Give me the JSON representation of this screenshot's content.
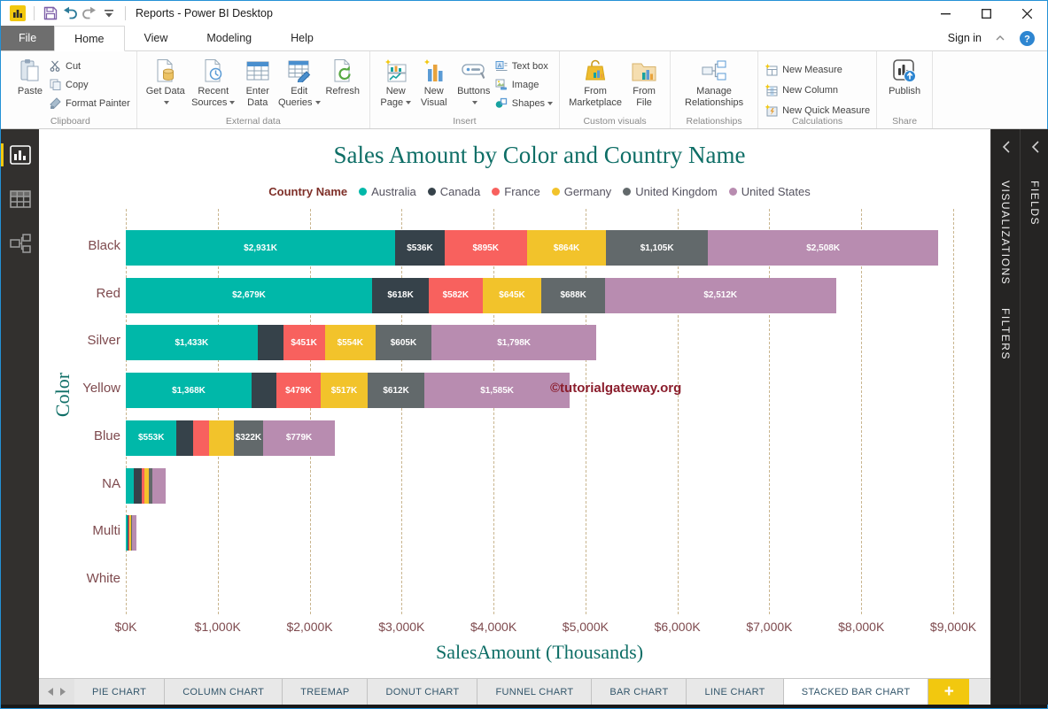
{
  "window": {
    "title": "Reports - Power BI Desktop"
  },
  "menu": {
    "tabs": [
      {
        "label": "File"
      },
      {
        "label": "Home"
      },
      {
        "label": "View"
      },
      {
        "label": "Modeling"
      },
      {
        "label": "Help"
      }
    ],
    "active_tab": "Home",
    "sign_in": "Sign in"
  },
  "ribbon": {
    "clipboard": {
      "group_label": "Clipboard",
      "paste": "Paste",
      "cut": "Cut",
      "copy": "Copy",
      "format_painter": "Format Painter"
    },
    "external": {
      "group_label": "External data",
      "get_data": "Get Data",
      "recent_sources": "Recent Sources",
      "enter_data": "Enter Data",
      "edit_queries": "Edit Queries",
      "refresh": "Refresh"
    },
    "insert": {
      "group_label": "Insert",
      "new_page": "New Page",
      "new_visual": "New Visual",
      "buttons": "Buttons",
      "text_box": "Text box",
      "image": "Image",
      "shapes": "Shapes"
    },
    "custom": {
      "group_label": "Custom visuals",
      "from_marketplace": "From Marketplace",
      "from_file": "From File"
    },
    "relationships": {
      "group_label": "Relationships",
      "manage": "Manage Relationships"
    },
    "calculations": {
      "group_label": "Calculations",
      "new_measure": "New Measure",
      "new_column": "New Column",
      "new_quick": "New Quick Measure"
    },
    "share": {
      "group_label": "Share",
      "publish": "Publish"
    }
  },
  "panels": {
    "visualizations": "VISUALIZATIONS",
    "filters": "FILTERS",
    "fields": "FIELDS"
  },
  "watermark": "©tutorialgateway.org",
  "page_tabs": {
    "tabs": [
      "PIE CHART",
      "COLUMN CHART",
      "TREEMAP",
      "DONUT CHART",
      "FUNNEL CHART",
      "BAR CHART",
      "LINE CHART",
      "STACKED BAR CHART"
    ],
    "active_index": 7,
    "add_label": "+"
  },
  "theme": {
    "title_color": "#0E6E66",
    "axis_label_color": "#7E4A4E",
    "grid_color": "#C9B58E",
    "watermark_color": "#8B1E2D",
    "accent_yellow": "#F2C80F"
  },
  "chart_data": {
    "type": "bar",
    "subtype": "stacked_horizontal",
    "title": "Sales Amount by Color and Country Name",
    "legend_title": "Country Name",
    "legend_position": "top",
    "xlabel": "SalesAmount (Thousands)",
    "ylabel": "Color",
    "x_ticks": [
      "$0K",
      "$1,000K",
      "$2,000K",
      "$3,000K",
      "$4,000K",
      "$5,000K",
      "$6,000K",
      "$7,000K",
      "$8,000K",
      "$9,000K"
    ],
    "xlim_thousands": [
      0,
      9000
    ],
    "grid": "dashed_vertical",
    "categories": [
      "Black",
      "Red",
      "Silver",
      "Yellow",
      "Blue",
      "NA",
      "Multi",
      "White"
    ],
    "series": [
      {
        "name": "Australia",
        "color": "#00B8A9"
      },
      {
        "name": "Canada",
        "color": "#36424A"
      },
      {
        "name": "France",
        "color": "#F8615E"
      },
      {
        "name": "Germany",
        "color": "#F2C32B"
      },
      {
        "name": "United Kingdom",
        "color": "#62696B"
      },
      {
        "name": "United States",
        "color": "#B88CB0"
      }
    ],
    "rows": [
      {
        "category": "Black",
        "segments": [
          {
            "value": 2931,
            "label": "$2,931K"
          },
          {
            "value": 536,
            "label": "$536K"
          },
          {
            "value": 895,
            "label": "$895K"
          },
          {
            "value": 864,
            "label": "$864K"
          },
          {
            "value": 1105,
            "label": "$1,105K"
          },
          {
            "value": 2508,
            "label": "$2,508K"
          }
        ]
      },
      {
        "category": "Red",
        "segments": [
          {
            "value": 2679,
            "label": "$2,679K"
          },
          {
            "value": 618,
            "label": "$618K"
          },
          {
            "value": 582,
            "label": "$582K"
          },
          {
            "value": 645,
            "label": "$645K"
          },
          {
            "value": 688,
            "label": "$688K"
          },
          {
            "value": 2512,
            "label": "$2,512K"
          }
        ]
      },
      {
        "category": "Silver",
        "segments": [
          {
            "value": 1433,
            "label": "$1,433K"
          },
          {
            "value": 280,
            "label": ""
          },
          {
            "value": 451,
            "label": "$451K"
          },
          {
            "value": 554,
            "label": "$554K"
          },
          {
            "value": 605,
            "label": "$605K"
          },
          {
            "value": 1798,
            "label": "$1,798K"
          }
        ]
      },
      {
        "category": "Yellow",
        "segments": [
          {
            "value": 1368,
            "label": "$1,368K"
          },
          {
            "value": 270,
            "label": ""
          },
          {
            "value": 479,
            "label": "$479K"
          },
          {
            "value": 517,
            "label": "$517K"
          },
          {
            "value": 612,
            "label": "$612K"
          },
          {
            "value": 1585,
            "label": "$1,585K"
          }
        ]
      },
      {
        "category": "Blue",
        "segments": [
          {
            "value": 553,
            "label": "$553K"
          },
          {
            "value": 180,
            "label": ""
          },
          {
            "value": 175,
            "label": ""
          },
          {
            "value": 265,
            "label": ""
          },
          {
            "value": 322,
            "label": "$322K"
          },
          {
            "value": 779,
            "label": "$779K"
          }
        ]
      },
      {
        "category": "NA",
        "segments": [
          {
            "value": 85,
            "label": ""
          },
          {
            "value": 90,
            "label": ""
          },
          {
            "value": 30,
            "label": ""
          },
          {
            "value": 45,
            "label": ""
          },
          {
            "value": 35,
            "label": ""
          },
          {
            "value": 150,
            "label": ""
          }
        ]
      },
      {
        "category": "Multi",
        "segments": [
          {
            "value": 18,
            "label": ""
          },
          {
            "value": 10,
            "label": ""
          },
          {
            "value": 15,
            "label": ""
          },
          {
            "value": 15,
            "label": ""
          },
          {
            "value": 8,
            "label": ""
          },
          {
            "value": 45,
            "label": ""
          }
        ]
      },
      {
        "category": "White",
        "segments": [
          {
            "value": 0,
            "label": ""
          },
          {
            "value": 0,
            "label": ""
          },
          {
            "value": 0,
            "label": ""
          },
          {
            "value": 0,
            "label": ""
          },
          {
            "value": 0,
            "label": ""
          },
          {
            "value": 0,
            "label": ""
          }
        ]
      }
    ]
  }
}
